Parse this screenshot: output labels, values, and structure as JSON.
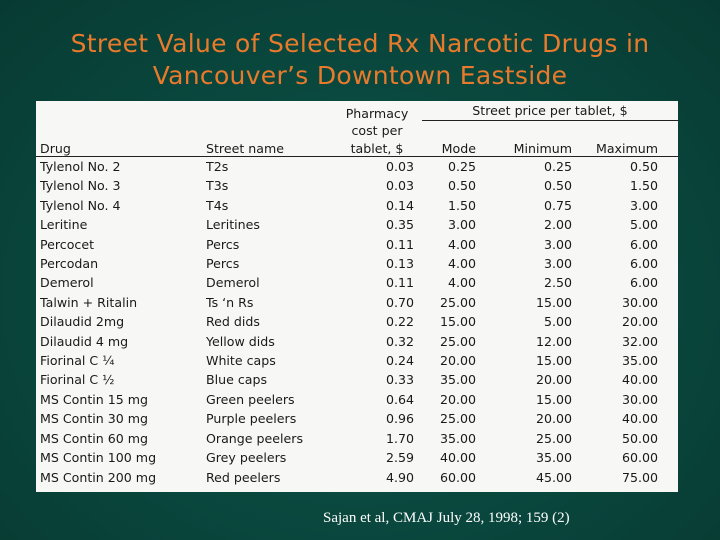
{
  "title": {
    "line1": "Street Value of Selected Rx Narcotic Drugs in",
    "line2": "Vancouver’s Downtown Eastside"
  },
  "table": {
    "group_header": "Street price per tablet, $",
    "pharmacy_header": [
      "Pharmacy",
      "cost per",
      "tablet, $"
    ],
    "columns": {
      "drug": "Drug",
      "street_name": "Street name",
      "mode": "Mode",
      "minimum": "Minimum",
      "maximum": "Maximum"
    },
    "rows": [
      {
        "drug": "Tylenol No. 2",
        "street": "T2s",
        "cost": "0.03",
        "mode": "0.25",
        "min": "0.25",
        "max": "0.50"
      },
      {
        "drug": "Tylenol No. 3",
        "street": "T3s",
        "cost": "0.03",
        "mode": "0.50",
        "min": "0.50",
        "max": "1.50"
      },
      {
        "drug": "Tylenol No. 4",
        "street": "T4s",
        "cost": "0.14",
        "mode": "1.50",
        "min": "0.75",
        "max": "3.00"
      },
      {
        "drug": "Leritine",
        "street": "Leritines",
        "cost": "0.35",
        "mode": "3.00",
        "min": "2.00",
        "max": "5.00"
      },
      {
        "drug": "Percocet",
        "street": "Percs",
        "cost": "0.11",
        "mode": "4.00",
        "min": "3.00",
        "max": "6.00"
      },
      {
        "drug": "Percodan",
        "street": "Percs",
        "cost": "0.13",
        "mode": "4.00",
        "min": "3.00",
        "max": "6.00"
      },
      {
        "drug": "Demerol",
        "street": "Demerol",
        "cost": "0.11",
        "mode": "4.00",
        "min": "2.50",
        "max": "6.00"
      },
      {
        "drug": "Talwin + Ritalin",
        "street": "Ts ‘n Rs",
        "cost": "0.70",
        "mode": "25.00",
        "min": "15.00",
        "max": "30.00"
      },
      {
        "drug": "Dilaudid 2mg",
        "street": "Red dids",
        "cost": "0.22",
        "mode": "15.00",
        "min": "5.00",
        "max": "20.00"
      },
      {
        "drug": "Dilaudid 4 mg",
        "street": "Yellow dids",
        "cost": "0.32",
        "mode": "25.00",
        "min": "12.00",
        "max": "32.00"
      },
      {
        "drug": "Fiorinal C ¼",
        "street": "White caps",
        "cost": "0.24",
        "mode": "20.00",
        "min": "15.00",
        "max": "35.00"
      },
      {
        "drug": "Fiorinal C ½",
        "street": "Blue caps",
        "cost": "0.33",
        "mode": "35.00",
        "min": "20.00",
        "max": "40.00"
      },
      {
        "drug": "MS Contin 15 mg",
        "street": "Green peelers",
        "cost": "0.64",
        "mode": "20.00",
        "min": "15.00",
        "max": "30.00"
      },
      {
        "drug": "MS Contin 30 mg",
        "street": "Purple peelers",
        "cost": "0.96",
        "mode": "25.00",
        "min": "20.00",
        "max": "40.00"
      },
      {
        "drug": "MS Contin 60 mg",
        "street": "Orange peelers",
        "cost": "1.70",
        "mode": "35.00",
        "min": "25.00",
        "max": "50.00"
      },
      {
        "drug": "MS Contin 100 mg",
        "street": "Grey peelers",
        "cost": "2.59",
        "mode": "40.00",
        "min": "35.00",
        "max": "60.00"
      },
      {
        "drug": "MS Contin 200 mg",
        "street": "Red peelers",
        "cost": "4.90",
        "mode": "60.00",
        "min": "45.00",
        "max": "75.00"
      }
    ]
  },
  "citation": "Sajan et al, CMAJ July 28, 1998; 159 (2)",
  "colors": {
    "background": "#0a4a40",
    "title": "#e87a2c",
    "table_bg": "#f7f7f5",
    "citation": "#ffffff"
  }
}
